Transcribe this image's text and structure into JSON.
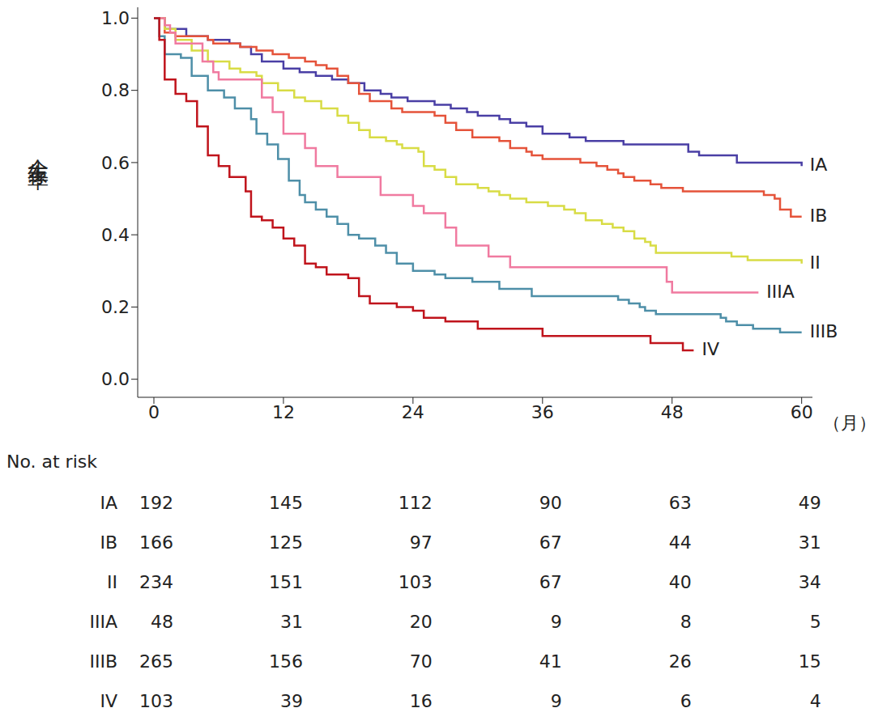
{
  "chart_data": {
    "type": "step",
    "ylabel": "全生存率",
    "xlabel": "（月）",
    "xlim": [
      -1.5,
      61
    ],
    "xticks": [
      0,
      12,
      24,
      36,
      48,
      60
    ],
    "ylim": [
      -0.05,
      1.03
    ],
    "yticks": [
      {
        "value": 0,
        "label": "0.0"
      },
      {
        "value": 0.2,
        "label": "0.2"
      },
      {
        "value": 0.4,
        "label": "0.4"
      },
      {
        "value": 0.6,
        "label": "0.6"
      },
      {
        "value": 0.8,
        "label": "0.8"
      },
      {
        "value": 1,
        "label": "1.0"
      }
    ],
    "grid": false,
    "legend": "none",
    "series": [
      {
        "name": "IA",
        "color": "#4a3fa5",
        "x": [
          0,
          1,
          3,
          5,
          7,
          8,
          9,
          10,
          12,
          13.5,
          15,
          16.5,
          18,
          19.5,
          21,
          22,
          23.5,
          26,
          27.5,
          29,
          30,
          32,
          33,
          34.5,
          36,
          38.5,
          40,
          43.5,
          49.5,
          50.5,
          54,
          60
        ],
        "values": [
          1,
          0.97,
          0.95,
          0.94,
          0.93,
          0.92,
          0.9,
          0.88,
          0.86,
          0.85,
          0.84,
          0.83,
          0.82,
          0.8,
          0.79,
          0.78,
          0.77,
          0.76,
          0.75,
          0.74,
          0.73,
          0.72,
          0.71,
          0.7,
          0.68,
          0.67,
          0.66,
          0.65,
          0.63,
          0.62,
          0.6,
          0.59
        ]
      },
      {
        "name": "IB",
        "color": "#e5533a",
        "x": [
          0,
          1,
          2,
          5,
          5.5,
          8,
          9.5,
          11,
          12.5,
          14,
          15,
          16,
          17,
          18,
          19,
          20,
          22,
          23,
          26,
          27,
          28,
          29.5,
          32,
          33,
          34.5,
          35,
          36,
          39.5,
          41,
          42,
          43,
          43.5,
          44.5,
          46,
          47,
          49,
          56.5,
          57.5,
          58,
          59,
          60
        ],
        "values": [
          1,
          0.96,
          0.95,
          0.94,
          0.93,
          0.92,
          0.91,
          0.9,
          0.89,
          0.88,
          0.87,
          0.86,
          0.84,
          0.82,
          0.79,
          0.77,
          0.75,
          0.74,
          0.73,
          0.71,
          0.69,
          0.67,
          0.66,
          0.64,
          0.63,
          0.62,
          0.61,
          0.6,
          0.59,
          0.58,
          0.57,
          0.56,
          0.55,
          0.54,
          0.53,
          0.52,
          0.51,
          0.5,
          0.47,
          0.45,
          0.45
        ]
      },
      {
        "name": "II",
        "color": "#d8dc45",
        "x": [
          0,
          1,
          2,
          3.5,
          5,
          7,
          8,
          9.5,
          10,
          11.5,
          13,
          14,
          15.5,
          17,
          18,
          19,
          20,
          21.5,
          22.5,
          23,
          24.5,
          25,
          26,
          27,
          28,
          30,
          31,
          32,
          33,
          34.5,
          36.5,
          38,
          39,
          40,
          41.5,
          42.5,
          43.5,
          44.5,
          45.5,
          46,
          46.5,
          53.5,
          55,
          60
        ],
        "values": [
          1,
          0.97,
          0.94,
          0.91,
          0.88,
          0.86,
          0.85,
          0.84,
          0.82,
          0.8,
          0.78,
          0.77,
          0.75,
          0.73,
          0.71,
          0.69,
          0.67,
          0.66,
          0.65,
          0.64,
          0.63,
          0.59,
          0.58,
          0.56,
          0.54,
          0.53,
          0.52,
          0.51,
          0.5,
          0.49,
          0.48,
          0.47,
          0.46,
          0.44,
          0.43,
          0.42,
          0.41,
          0.39,
          0.38,
          0.37,
          0.35,
          0.34,
          0.33,
          0.32
        ]
      },
      {
        "name": "IIIA",
        "color": "#f07aa0",
        "x": [
          0,
          1,
          1.5,
          2,
          4.5,
          5.5,
          6,
          10,
          11,
          12,
          14,
          15,
          17,
          21,
          24,
          25,
          27,
          28,
          31,
          33,
          47.5,
          48,
          56
        ],
        "values": [
          1,
          0.98,
          0.96,
          0.93,
          0.88,
          0.85,
          0.83,
          0.78,
          0.74,
          0.68,
          0.64,
          0.59,
          0.56,
          0.51,
          0.48,
          0.46,
          0.42,
          0.37,
          0.34,
          0.31,
          0.27,
          0.24,
          0.24
        ]
      },
      {
        "name": "IIIB",
        "color": "#4e8fa8",
        "x": [
          0,
          0.5,
          1,
          2.5,
          3.5,
          5,
          6.5,
          7.5,
          9,
          9.5,
          10.5,
          11.5,
          12.5,
          13.5,
          14,
          15,
          16,
          17,
          18,
          19,
          20.5,
          21.5,
          22.5,
          24,
          26,
          27,
          29.5,
          32,
          35,
          43,
          44,
          45,
          45.5,
          46.5,
          52.5,
          53,
          54,
          55.5,
          58,
          60
        ],
        "values": [
          1,
          0.95,
          0.9,
          0.89,
          0.84,
          0.8,
          0.78,
          0.75,
          0.72,
          0.68,
          0.65,
          0.61,
          0.55,
          0.51,
          0.49,
          0.47,
          0.45,
          0.43,
          0.4,
          0.39,
          0.37,
          0.35,
          0.32,
          0.3,
          0.29,
          0.28,
          0.27,
          0.25,
          0.23,
          0.22,
          0.21,
          0.2,
          0.19,
          0.18,
          0.17,
          0.16,
          0.15,
          0.14,
          0.13,
          0.13
        ]
      },
      {
        "name": "IV",
        "color": "#c0141c",
        "x": [
          0,
          0.5,
          1,
          2,
          3,
          4,
          5,
          6,
          7,
          8.5,
          9,
          10,
          11,
          12,
          13,
          14,
          15,
          16,
          18,
          19,
          20,
          22.5,
          24,
          25,
          27,
          30,
          36,
          46,
          49,
          50
        ],
        "values": [
          1,
          0.94,
          0.83,
          0.79,
          0.77,
          0.7,
          0.62,
          0.59,
          0.56,
          0.52,
          0.45,
          0.44,
          0.42,
          0.39,
          0.37,
          0.32,
          0.31,
          0.29,
          0.28,
          0.23,
          0.21,
          0.2,
          0.19,
          0.17,
          0.16,
          0.14,
          0.12,
          0.1,
          0.08,
          0.08
        ]
      }
    ],
    "at_risk": {
      "title": "No. at risk",
      "times": [
        0,
        12,
        24,
        36,
        48,
        60
      ],
      "rows": [
        {
          "name": "IA",
          "values": [
            192,
            145,
            112,
            90,
            63,
            49
          ]
        },
        {
          "name": "IB",
          "values": [
            166,
            125,
            97,
            67,
            44,
            31
          ]
        },
        {
          "name": "II",
          "values": [
            234,
            151,
            103,
            67,
            40,
            34
          ]
        },
        {
          "name": "IIIA",
          "values": [
            48,
            31,
            20,
            9,
            8,
            5
          ]
        },
        {
          "name": "IIIB",
          "values": [
            265,
            156,
            70,
            41,
            26,
            15
          ]
        },
        {
          "name": "IV",
          "values": [
            103,
            39,
            16,
            9,
            6,
            4
          ]
        }
      ]
    }
  }
}
